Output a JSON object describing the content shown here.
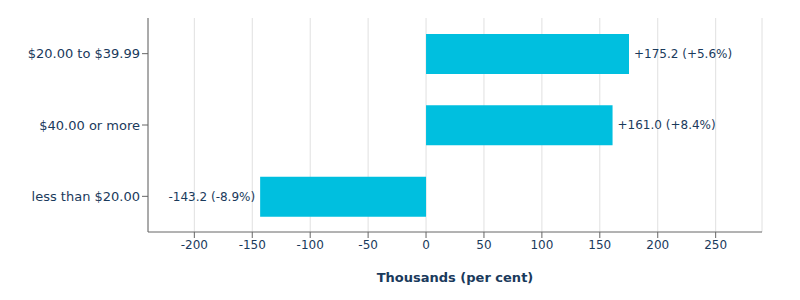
{
  "chart_data": {
    "type": "bar",
    "orientation": "horizontal",
    "xlabel": "Thousands (per cent)",
    "categories": [
      "$20.00 to $39.99",
      "$40.00 or more",
      "less than $20.00"
    ],
    "values": [
      175.2,
      161.0,
      -143.2
    ],
    "value_labels": [
      "+175.2 (+5.6%)",
      "+161.0 (+8.4%)",
      "-143.2 (-8.9%)"
    ],
    "data_labels": true,
    "color": "#00BFDF",
    "xlim": [
      -240,
      290
    ],
    "xticks": [
      -200,
      -150,
      -100,
      -50,
      0,
      50,
      100,
      150,
      200,
      250
    ],
    "grid": true
  }
}
